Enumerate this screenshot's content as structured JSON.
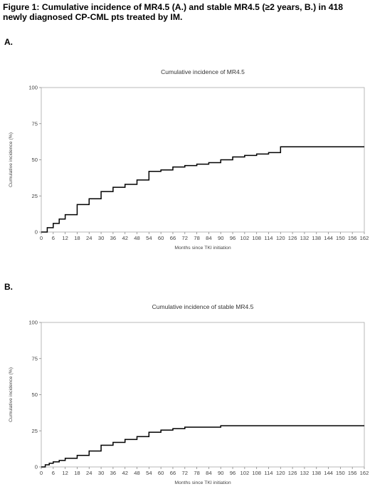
{
  "figure": {
    "title": "Figure 1: Cumulative incidence of MR4.5 (A.) and stable MR4.5 (≥2 years, B.) in 418 newly diagnosed CP-CML pts treated by IM.",
    "panel_a_label": "A.",
    "panel_b_label": "B."
  },
  "chart_data": [
    {
      "type": "line",
      "step": true,
      "title": "Cumulative incidence of MR4.5",
      "xlabel": "Months since TKI initiation",
      "ylabel": "Cumulative incidence (%)",
      "xlim": [
        0,
        162
      ],
      "ylim": [
        0,
        100
      ],
      "xticks": [
        0,
        6,
        12,
        18,
        24,
        30,
        36,
        42,
        48,
        54,
        60,
        66,
        72,
        78,
        84,
        90,
        96,
        102,
        108,
        114,
        120,
        126,
        132,
        138,
        144,
        150,
        156,
        162
      ],
      "yticks": [
        0,
        25,
        50,
        75,
        100
      ],
      "grid": false,
      "line_color": "#000000",
      "x": [
        0,
        3,
        6,
        9,
        12,
        18,
        24,
        30,
        36,
        42,
        48,
        54,
        60,
        66,
        72,
        78,
        84,
        90,
        96,
        102,
        108,
        114,
        120,
        162
      ],
      "y": [
        0,
        3,
        6,
        9,
        12,
        19,
        23,
        28,
        31,
        33,
        36,
        42,
        43,
        45,
        46,
        47,
        48,
        50,
        52,
        53,
        54,
        55,
        59,
        59
      ]
    },
    {
      "type": "line",
      "step": true,
      "title": "Cumulative incidence of stable MR4.5",
      "xlabel": "Months since TKI initiation",
      "ylabel": "Cumulative incidence (%)",
      "xlim": [
        0,
        162
      ],
      "ylim": [
        0,
        100
      ],
      "xticks": [
        0,
        6,
        12,
        18,
        24,
        30,
        36,
        42,
        48,
        54,
        60,
        66,
        72,
        78,
        84,
        90,
        96,
        102,
        108,
        114,
        120,
        126,
        132,
        138,
        144,
        150,
        156,
        162
      ],
      "yticks": [
        0,
        25,
        50,
        75,
        100
      ],
      "grid": false,
      "line_color": "#000000",
      "x": [
        0,
        2,
        4,
        6,
        9,
        12,
        18,
        24,
        30,
        36,
        42,
        48,
        54,
        60,
        66,
        72,
        90,
        162
      ],
      "y": [
        0,
        1.5,
        2.5,
        3.5,
        4.5,
        6,
        8,
        11,
        15,
        17,
        19,
        21,
        24,
        25.5,
        26.5,
        27.5,
        28.5,
        28.5
      ]
    }
  ]
}
